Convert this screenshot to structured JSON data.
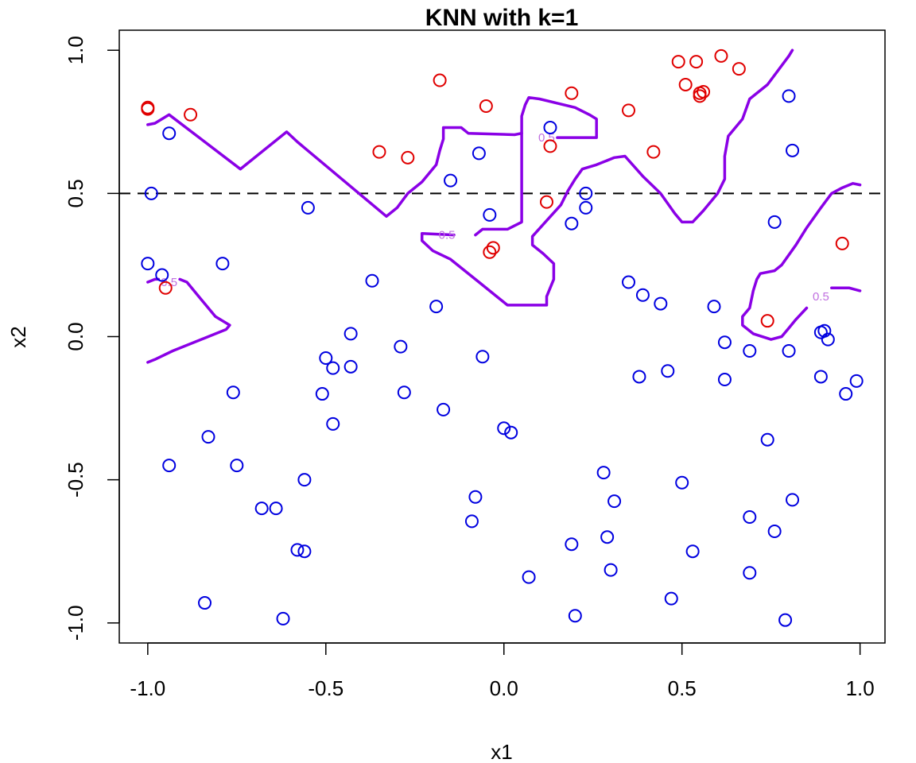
{
  "chart_data": {
    "type": "scatter",
    "title": "KNN with k=1",
    "xlabel": "x1",
    "ylabel": "x2",
    "xlim": [
      -1.08,
      1.07
    ],
    "ylim": [
      -1.07,
      1.07
    ],
    "grid": false,
    "legend": "none",
    "xticks": [
      {
        "value": -1.0,
        "label": "-1.0"
      },
      {
        "value": -0.5,
        "label": "-0.5"
      },
      {
        "value": 0.0,
        "label": "0.0"
      },
      {
        "value": 0.5,
        "label": "0.5"
      },
      {
        "value": 1.0,
        "label": "1.0"
      }
    ],
    "yticks": [
      {
        "value": -1.0,
        "label": "-1.0"
      },
      {
        "value": -0.5,
        "label": "-0.5"
      },
      {
        "value": 0.0,
        "label": "0.0"
      },
      {
        "value": 0.5,
        "label": "0.5"
      },
      {
        "value": 1.0,
        "label": "1.0"
      }
    ],
    "colors": {
      "class_red": "#e00000",
      "class_blue": "#0000e0",
      "boundary": "#8a00e6",
      "contour_label": "#c070e0",
      "reference": "#000000",
      "axes": "#000000"
    },
    "reference_line": {
      "y": 0.5,
      "style": "dashed"
    },
    "series": [
      {
        "color": "red",
        "points": [
          [
            -1.0,
            0.8
          ],
          [
            -1.0,
            0.795
          ],
          [
            -0.88,
            0.775
          ],
          [
            -0.18,
            0.895
          ],
          [
            -0.05,
            0.805
          ],
          [
            0.19,
            0.85
          ],
          [
            -0.35,
            0.645
          ],
          [
            -0.27,
            0.625
          ],
          [
            0.35,
            0.79
          ],
          [
            0.13,
            0.665
          ],
          [
            0.42,
            0.645
          ],
          [
            0.49,
            0.96
          ],
          [
            0.54,
            0.96
          ],
          [
            0.61,
            0.98
          ],
          [
            0.66,
            0.935
          ],
          [
            0.51,
            0.88
          ],
          [
            0.55,
            0.84
          ],
          [
            0.55,
            0.85
          ],
          [
            0.56,
            0.855
          ],
          [
            0.12,
            0.47
          ],
          [
            -0.04,
            0.295
          ],
          [
            -0.03,
            0.31
          ],
          [
            -0.95,
            0.17
          ],
          [
            0.74,
            0.055
          ],
          [
            0.95,
            0.325
          ]
        ]
      },
      {
        "color": "blue",
        "points": [
          [
            -0.94,
            0.71
          ],
          [
            -0.99,
            0.5
          ],
          [
            -0.55,
            0.45
          ],
          [
            -0.15,
            0.545
          ],
          [
            -0.07,
            0.64
          ],
          [
            0.13,
            0.73
          ],
          [
            -0.04,
            0.425
          ],
          [
            0.19,
            0.395
          ],
          [
            0.23,
            0.45
          ],
          [
            0.23,
            0.5
          ],
          [
            0.8,
            0.84
          ],
          [
            0.81,
            0.65
          ],
          [
            0.76,
            0.4
          ],
          [
            -1.0,
            0.255
          ],
          [
            -0.96,
            0.215
          ],
          [
            -0.79,
            0.255
          ],
          [
            -0.37,
            0.195
          ],
          [
            -0.19,
            0.105
          ],
          [
            0.35,
            0.19
          ],
          [
            0.39,
            0.145
          ],
          [
            0.44,
            0.115
          ],
          [
            0.59,
            0.105
          ],
          [
            -0.43,
            0.01
          ],
          [
            -0.29,
            -0.035
          ],
          [
            -0.5,
            -0.075
          ],
          [
            -0.48,
            -0.11
          ],
          [
            -0.43,
            -0.105
          ],
          [
            -0.06,
            -0.07
          ],
          [
            0.38,
            -0.14
          ],
          [
            0.46,
            -0.12
          ],
          [
            0.62,
            -0.02
          ],
          [
            0.69,
            -0.05
          ],
          [
            0.62,
            -0.15
          ],
          [
            0.8,
            -0.05
          ],
          [
            0.89,
            0.015
          ],
          [
            0.9,
            0.02
          ],
          [
            0.91,
            -0.01
          ],
          [
            0.89,
            -0.14
          ],
          [
            0.96,
            -0.2
          ],
          [
            0.99,
            -0.155
          ],
          [
            -0.76,
            -0.195
          ],
          [
            -0.51,
            -0.2
          ],
          [
            -0.28,
            -0.195
          ],
          [
            -0.17,
            -0.255
          ],
          [
            -0.48,
            -0.305
          ],
          [
            -0.83,
            -0.35
          ],
          [
            0.0,
            -0.32
          ],
          [
            0.02,
            -0.335
          ],
          [
            0.74,
            -0.36
          ],
          [
            -0.94,
            -0.45
          ],
          [
            -0.75,
            -0.45
          ],
          [
            -0.56,
            -0.5
          ],
          [
            0.28,
            -0.475
          ],
          [
            0.5,
            -0.51
          ],
          [
            -0.08,
            -0.56
          ],
          [
            0.31,
            -0.575
          ],
          [
            0.81,
            -0.57
          ],
          [
            -0.68,
            -0.6
          ],
          [
            -0.64,
            -0.6
          ],
          [
            -0.09,
            -0.645
          ],
          [
            0.69,
            -0.63
          ],
          [
            0.76,
            -0.68
          ],
          [
            -0.58,
            -0.745
          ],
          [
            -0.56,
            -0.75
          ],
          [
            0.19,
            -0.725
          ],
          [
            0.29,
            -0.7
          ],
          [
            0.53,
            -0.75
          ],
          [
            0.07,
            -0.84
          ],
          [
            0.3,
            -0.815
          ],
          [
            0.69,
            -0.825
          ],
          [
            -0.84,
            -0.93
          ],
          [
            -0.62,
            -0.985
          ],
          [
            0.2,
            -0.975
          ],
          [
            0.47,
            -0.915
          ],
          [
            0.79,
            -0.99
          ]
        ]
      }
    ],
    "boundary": {
      "label": "0.5",
      "segments": [
        [
          [
            -1.0,
            0.74
          ],
          [
            -0.98,
            0.745
          ],
          [
            -0.94,
            0.775
          ],
          [
            -0.74,
            0.585
          ],
          [
            -0.61,
            0.715
          ],
          [
            -0.58,
            0.68
          ],
          [
            -0.33,
            0.42
          ],
          [
            -0.3,
            0.45
          ],
          [
            -0.27,
            0.5
          ],
          [
            -0.23,
            0.54
          ],
          [
            -0.19,
            0.6
          ],
          [
            -0.18,
            0.65
          ],
          [
            -0.17,
            0.69
          ],
          [
            -0.17,
            0.73
          ],
          [
            -0.12,
            0.73
          ],
          [
            -0.1,
            0.71
          ],
          [
            0.03,
            0.705
          ],
          [
            0.05,
            0.71
          ]
        ],
        [
          [
            0.15,
            0.695
          ],
          [
            0.26,
            0.695
          ],
          [
            0.26,
            0.76
          ],
          [
            0.24,
            0.775
          ],
          [
            0.2,
            0.8
          ],
          [
            0.1,
            0.83
          ],
          [
            0.07,
            0.835
          ],
          [
            0.06,
            0.81
          ],
          [
            0.05,
            0.77
          ],
          [
            0.05,
            0.72
          ],
          [
            0.05,
            0.65
          ],
          [
            0.05,
            0.6
          ],
          [
            0.05,
            0.55
          ],
          [
            0.05,
            0.5
          ],
          [
            0.05,
            0.45
          ],
          [
            0.05,
            0.4
          ],
          [
            0.01,
            0.375
          ],
          [
            -0.06,
            0.375
          ],
          [
            -0.08,
            0.355
          ]
        ],
        [
          [
            -0.14,
            0.355
          ],
          [
            -0.23,
            0.36
          ],
          [
            -0.23,
            0.335
          ],
          [
            -0.2,
            0.3
          ],
          [
            -0.15,
            0.27
          ],
          [
            -0.07,
            0.19
          ],
          [
            -0.02,
            0.14
          ],
          [
            0.01,
            0.11
          ],
          [
            0.09,
            0.11
          ],
          [
            0.12,
            0.11
          ],
          [
            0.12,
            0.14
          ],
          [
            0.14,
            0.2
          ],
          [
            0.14,
            0.255
          ],
          [
            0.11,
            0.29
          ],
          [
            0.08,
            0.32
          ],
          [
            0.08,
            0.35
          ],
          [
            0.12,
            0.405
          ],
          [
            0.16,
            0.46
          ],
          [
            0.18,
            0.51
          ],
          [
            0.2,
            0.55
          ],
          [
            0.22,
            0.585
          ],
          [
            0.26,
            0.6
          ],
          [
            0.31,
            0.625
          ],
          [
            0.34,
            0.63
          ],
          [
            0.39,
            0.56
          ],
          [
            0.44,
            0.5
          ],
          [
            0.48,
            0.43
          ],
          [
            0.5,
            0.4
          ],
          [
            0.53,
            0.4
          ],
          [
            0.56,
            0.44
          ],
          [
            0.6,
            0.5
          ],
          [
            0.62,
            0.55
          ],
          [
            0.62,
            0.63
          ],
          [
            0.63,
            0.7
          ],
          [
            0.67,
            0.76
          ],
          [
            0.69,
            0.83
          ],
          [
            0.74,
            0.88
          ],
          [
            0.8,
            0.98
          ],
          [
            0.81,
            1.0
          ]
        ],
        [
          [
            1.0,
            0.53
          ],
          [
            0.98,
            0.535
          ],
          [
            0.95,
            0.52
          ],
          [
            0.92,
            0.5
          ],
          [
            0.89,
            0.45
          ],
          [
            0.85,
            0.38
          ],
          [
            0.82,
            0.32
          ],
          [
            0.78,
            0.25
          ],
          [
            0.76,
            0.23
          ],
          [
            0.72,
            0.22
          ],
          [
            0.71,
            0.2
          ],
          [
            0.7,
            0.16
          ],
          [
            0.69,
            0.1
          ],
          [
            0.67,
            0.07
          ],
          [
            0.67,
            0.04
          ],
          [
            0.7,
            0.01
          ],
          [
            0.75,
            -0.01
          ],
          [
            0.78,
            0.0
          ],
          [
            0.8,
            0.03
          ],
          [
            0.82,
            0.06
          ],
          [
            0.85,
            0.1
          ]
        ],
        [
          [
            0.92,
            0.17
          ],
          [
            0.97,
            0.17
          ],
          [
            1.0,
            0.16
          ]
        ],
        [
          [
            -1.0,
            0.19
          ],
          [
            -0.98,
            0.2
          ],
          [
            -0.97,
            0.2
          ]
        ],
        [
          [
            -0.91,
            0.2
          ],
          [
            -0.89,
            0.19
          ],
          [
            -0.85,
            0.13
          ],
          [
            -0.81,
            0.07
          ],
          [
            -0.77,
            0.04
          ],
          [
            -0.78,
            0.025
          ],
          [
            -0.85,
            -0.01
          ],
          [
            -0.93,
            -0.05
          ],
          [
            -0.98,
            -0.08
          ],
          [
            -1.0,
            -0.09
          ]
        ]
      ],
      "label_positions": [
        [
          0.12,
          0.695
        ],
        [
          -0.16,
          0.355
        ],
        [
          -0.94,
          0.19
        ],
        [
          0.89,
          0.14
        ]
      ]
    }
  }
}
